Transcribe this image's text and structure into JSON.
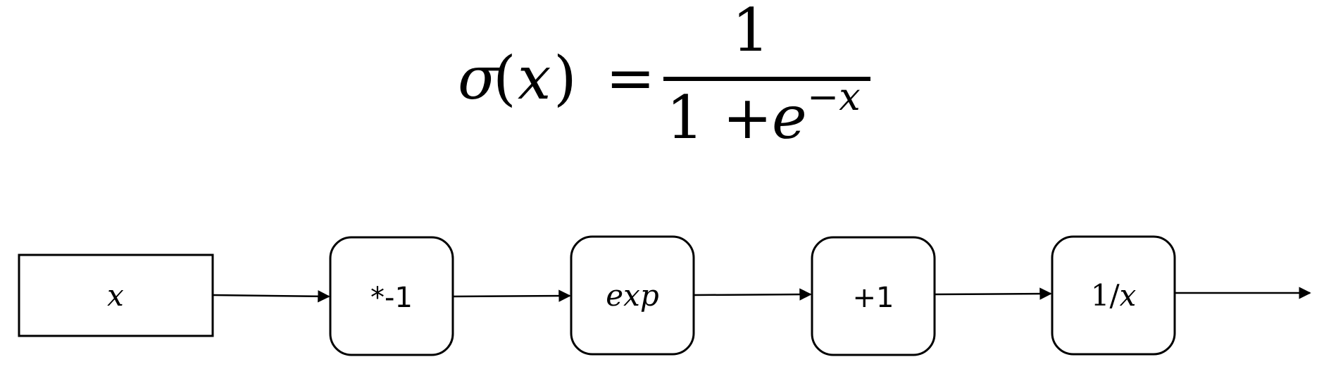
{
  "formula": {
    "lhs_sigma": "σ",
    "lhs_open": "(",
    "lhs_var": "x",
    "lhs_close": ")",
    "equals": "=",
    "numerator": "1",
    "denominator_base": "1 + ",
    "denominator_exp_base": "e",
    "denominator_exponent": "−x"
  },
  "nodes": [
    {
      "label": "x",
      "style": "italic",
      "shape": "rect"
    },
    {
      "label": "*-1",
      "style": "sans",
      "shape": "rounded"
    },
    {
      "label": "exp",
      "style": "italic",
      "shape": "rounded"
    },
    {
      "label": "+1",
      "style": "sans",
      "shape": "rounded"
    },
    {
      "label": "1/x",
      "style": "mixed",
      "shape": "rounded",
      "label_prefix": "1/",
      "label_var": "x"
    }
  ],
  "colors": {
    "stroke": "#000000",
    "background": "#ffffff"
  }
}
